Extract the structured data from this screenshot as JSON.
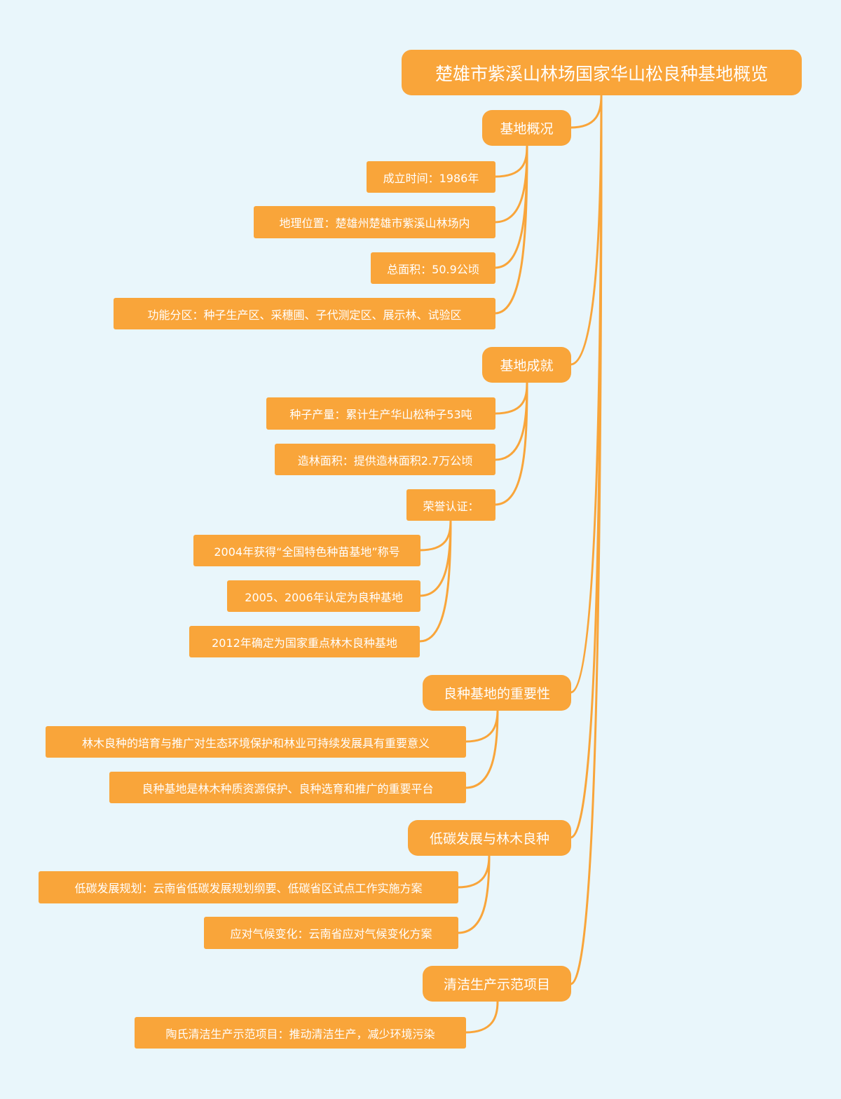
{
  "colors": {
    "background": "#E9F6FB",
    "node": "#F9A53A",
    "text": "#FFFFFF"
  },
  "mindmap": {
    "root": {
      "label": "楚雄市紫溪山林场国家华山松良种基地概览"
    },
    "branches": [
      {
        "label": "基地概况",
        "children": [
          {
            "label": "成立时间：1986年"
          },
          {
            "label": "地理位置：楚雄州楚雄市紫溪山林场内"
          },
          {
            "label": "总面积：50.9公顷"
          },
          {
            "label": "功能分区：种子生产区、采穗圃、子代测定区、展示林、试验区"
          }
        ]
      },
      {
        "label": "基地成就",
        "children": [
          {
            "label": "种子产量：累计生产华山松种子53吨"
          },
          {
            "label": "造林面积：提供造林面积2.7万公顷"
          },
          {
            "label": "荣誉认证：",
            "children": [
              {
                "label": "2004年获得“全国特色种苗基地”称号"
              },
              {
                "label": "2005、2006年认定为良种基地"
              },
              {
                "label": "2012年确定为国家重点林木良种基地"
              }
            ]
          }
        ]
      },
      {
        "label": "良种基地的重要性",
        "children": [
          {
            "label": "林木良种的培育与推广对生态环境保护和林业可持续发展具有重要意义"
          },
          {
            "label": "良种基地是林木种质资源保护、良种选育和推广的重要平台"
          }
        ]
      },
      {
        "label": "低碳发展与林木良种",
        "children": [
          {
            "label": "低碳发展规划：云南省低碳发展规划纲要、低碳省区试点工作实施方案"
          },
          {
            "label": "应对气候变化：云南省应对气候变化方案"
          }
        ]
      },
      {
        "label": "清洁生产示范项目",
        "children": [
          {
            "label": "陶氏清洁生产示范项目：推动清洁生产，减少环境污染"
          }
        ]
      }
    ]
  }
}
